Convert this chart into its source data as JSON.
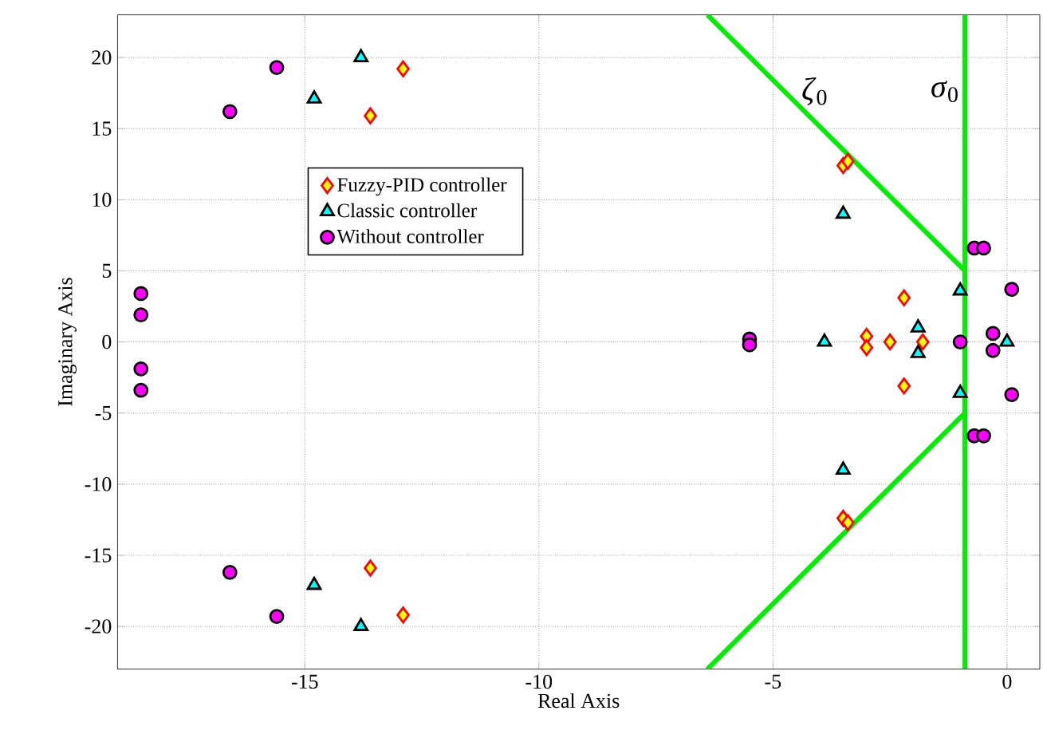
{
  "chart_data": {
    "type": "scatter",
    "xlabel": "Real Axis",
    "ylabel": "Imaginary Axis",
    "xlim": [
      -19,
      0.7
    ],
    "ylim": [
      -23,
      23
    ],
    "xticks": [
      -15,
      -10,
      -5,
      0
    ],
    "yticks": [
      -20,
      -15,
      -10,
      -5,
      0,
      5,
      10,
      15,
      20
    ],
    "grid": true,
    "legend": "left",
    "series": [
      {
        "name": "Fuzzy-PID controller",
        "color": "#ffff00",
        "marker": "diamond",
        "x": [
          -12.9,
          -13.6,
          -13.6,
          -12.9,
          -3.5,
          -3.4,
          -3.5,
          -3.4,
          -2.2,
          -2.2,
          -3.0,
          -3.0,
          -2.5,
          -1.8
        ],
        "values": [
          19.2,
          15.9,
          -15.9,
          -19.2,
          12.4,
          12.7,
          -12.4,
          -12.7,
          3.1,
          -3.1,
          0.4,
          -0.4,
          0,
          0
        ]
      },
      {
        "name": "Classic controller",
        "color": "#00ffff",
        "marker": "triangle",
        "x": [
          -13.8,
          -14.8,
          -14.8,
          -13.8,
          -3.5,
          -3.5,
          -3.9,
          -1.9,
          -1.9,
          -1.0,
          -1.0,
          0.0
        ],
        "values": [
          20,
          17.1,
          -17.1,
          -20,
          9,
          -9,
          0,
          1,
          -0.8,
          3.6,
          -3.6,
          0
        ]
      },
      {
        "name": "Without controller",
        "color": "#ff00ff",
        "marker": "circle",
        "x": [
          -15.6,
          -16.6,
          -18.5,
          -18.5,
          -18.5,
          -18.5,
          -16.6,
          -15.6,
          -5.5,
          -5.5,
          -0.7,
          -0.5,
          -0.7,
          -0.5,
          0.1,
          0.1,
          -1.0,
          -0.3,
          -0.3
        ],
        "values": [
          19.3,
          16.2,
          3.4,
          1.9,
          -1.9,
          -3.4,
          -16.2,
          -19.3,
          0.2,
          -0.2,
          6.6,
          6.6,
          -6.6,
          -6.6,
          3.7,
          -3.7,
          0,
          0.6,
          -0.6
        ]
      },
      {
        "type": "line",
        "color": "#00ee00",
        "x": [
          -6.4,
          -0.9,
          -0.9,
          -6.4
        ],
        "values": [
          23,
          5,
          -5,
          -23
        ]
      }
    ],
    "ref_lines": [
      {
        "axis": "x",
        "value": -0.9,
        "label": "*σ*$_{0}$",
        "color": "#00ee00"
      }
    ],
    "annotations": [
      "*ζ*$_{0}$"
    ]
  }
}
